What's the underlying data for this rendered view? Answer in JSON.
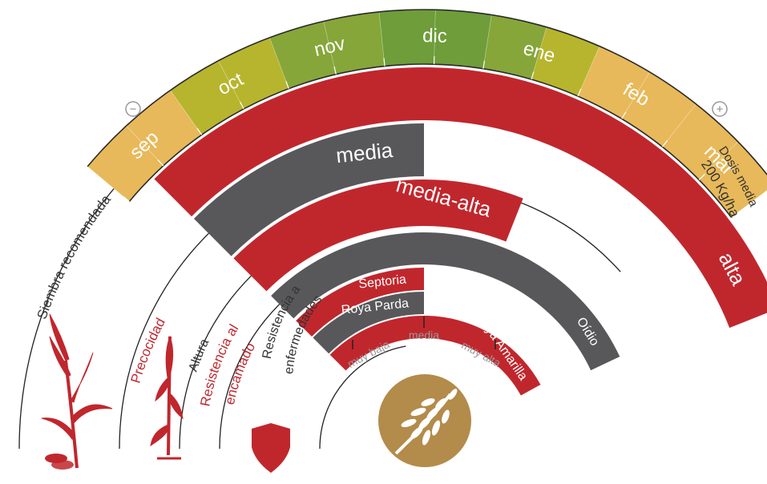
{
  "months": {
    "labels": [
      "sep",
      "oct",
      "nov",
      "dic",
      "ene",
      "feb",
      "mar"
    ],
    "segment_colors": [
      "#e8b95a",
      "#e8b95a",
      "#b7b52e",
      "#b7b52e",
      "#86a63a",
      "#86a63a",
      "#6e9d3a",
      "#6e9d3a",
      "#86a63a",
      "#b7b52e",
      "#e8b95a",
      "#e8b95a",
      "#e8b95a",
      "#e8b95a"
    ],
    "minus_symbol": "−",
    "plus_symbol": "+"
  },
  "dose": {
    "line1": "Dosis media",
    "line2": "200 Kg/ha"
  },
  "bands": {
    "precocidad": {
      "title": "Precocidad",
      "value": "alta",
      "color": "#c0272d",
      "level": 0.88
    },
    "altura": {
      "title": "Altura",
      "value": "media",
      "color": "#58585a",
      "level": 0.5
    },
    "encamado": {
      "title_line1": "Resistencia al",
      "title_line2": "encamado",
      "value": "media-alta",
      "color": "#c0272d",
      "level": 0.62
    },
    "enfermedades": {
      "title_line1": "Resistencia a",
      "title_line2": "enfermedades",
      "items": [
        {
          "name": "Oídio",
          "color": "#58585a",
          "level": 0.86
        },
        {
          "name": "Septoria",
          "color": "#c0272d",
          "level": 0.5
        },
        {
          "name": "Roya Parda",
          "color": "#58585a",
          "level": 0.5
        },
        {
          "name": "Roya Amarilla",
          "color": "#c0272d",
          "level": 0.84
        }
      ]
    }
  },
  "siembra": {
    "title": "Siembra recomendada"
  },
  "scale": {
    "low": "muy baja",
    "mid": "media",
    "high": "muy alta"
  },
  "colors": {
    "red": "#c0272d",
    "gray": "#58585a",
    "gold": "#b38b4a",
    "line": "#222222"
  }
}
